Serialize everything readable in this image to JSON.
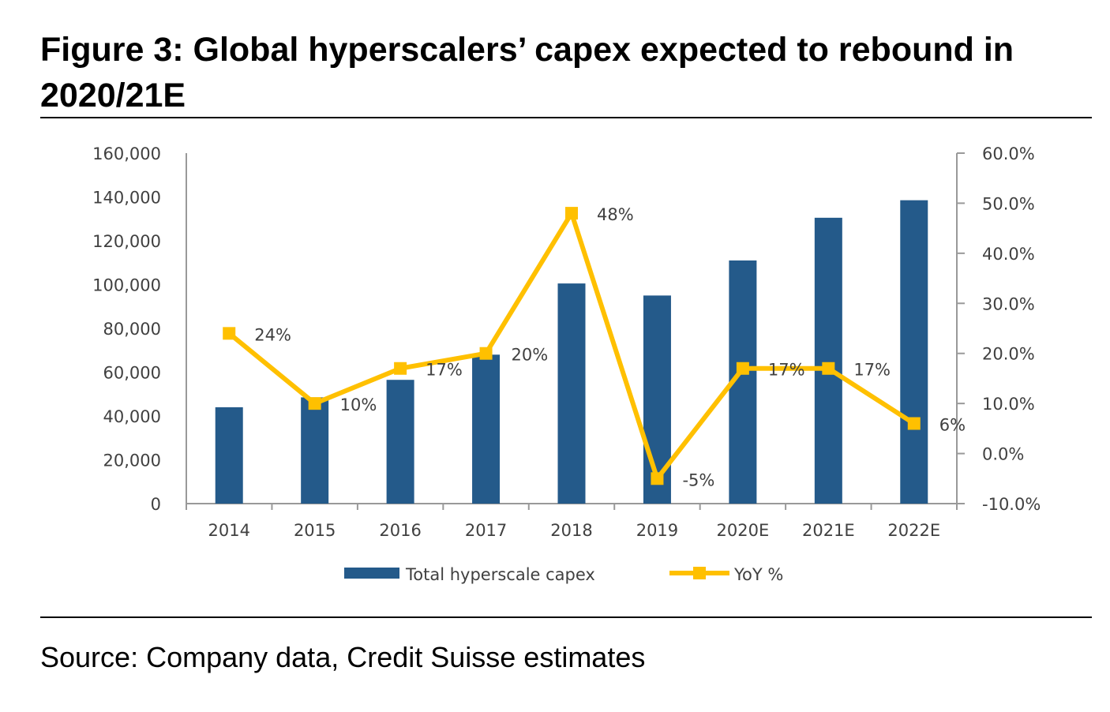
{
  "title": "Figure 3: Global hyperscalers’ capex expected to rebound in 2020/21E",
  "source": "Source: Company data, Credit Suisse estimates",
  "chart_data": {
    "type": "bar+line",
    "categories": [
      "2014",
      "2015",
      "2016",
      "2017",
      "2018",
      "2019",
      "2020E",
      "2021E",
      "2022E"
    ],
    "series": [
      {
        "name": "Total hyperscale capex",
        "type": "bar",
        "axis": "left",
        "color": "#245a8a",
        "values": [
          44000,
          48500,
          56500,
          68000,
          100500,
          95000,
          111000,
          130500,
          138500
        ]
      },
      {
        "name": "YoY %",
        "type": "line",
        "axis": "right",
        "color": "#ffc000",
        "values": [
          24,
          10,
          17,
          20,
          48,
          -5,
          17,
          17,
          6
        ],
        "labels": [
          "24%",
          "10%",
          "17%",
          "20%",
          "48%",
          "-5%",
          "17%",
          "17%",
          "6%"
        ]
      }
    ],
    "left_axis": {
      "range": [
        0,
        160000
      ],
      "ticks": [
        "0",
        "20,000",
        "40,000",
        "60,000",
        "80,000",
        "100,000",
        "120,000",
        "140,000",
        "160,000"
      ]
    },
    "right_axis": {
      "range": [
        -10,
        60
      ],
      "ticks": [
        "-10.0%",
        "0.0%",
        "10.0%",
        "20.0%",
        "30.0%",
        "40.0%",
        "50.0%",
        "60.0%"
      ]
    },
    "legend": {
      "position": "bottom",
      "entries": [
        "Total hyperscale capex",
        "YoY %"
      ]
    },
    "grid": false
  }
}
